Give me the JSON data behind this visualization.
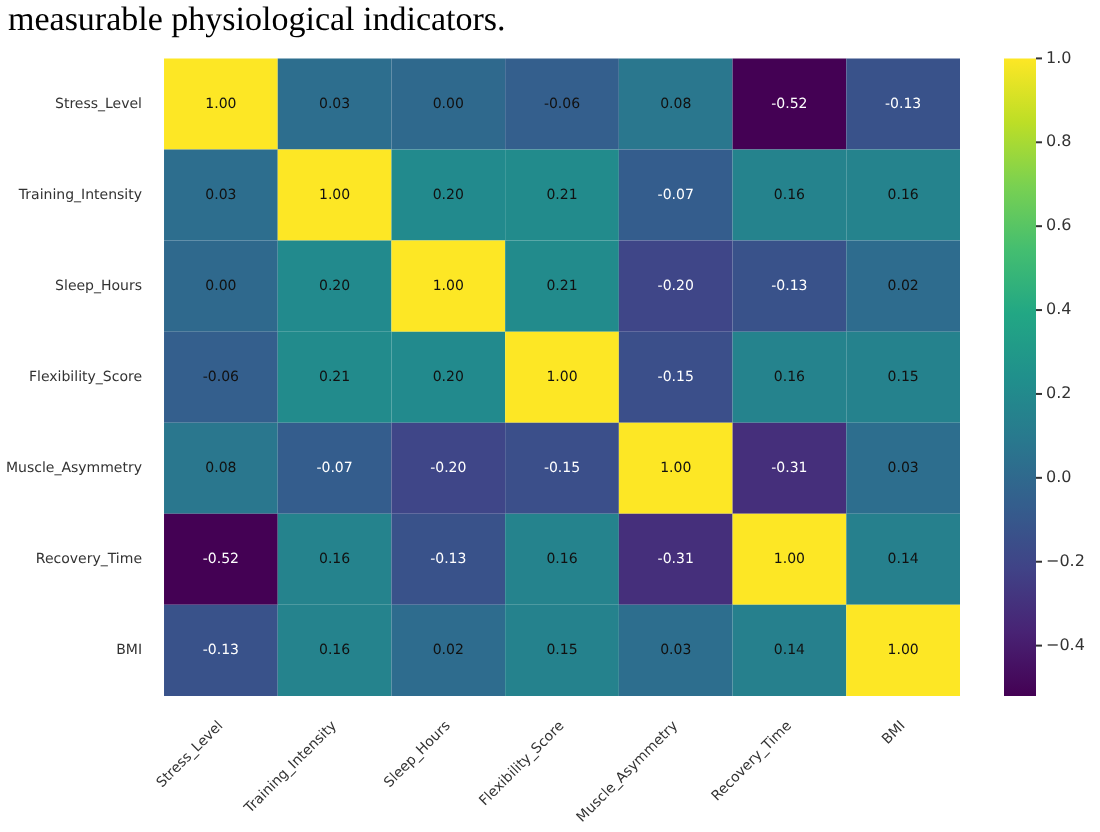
{
  "chart_data": {
    "type": "heatmap",
    "annotations": [
      "measurable physiological indicators."
    ],
    "categories": [
      "Stress_Level",
      "Training_Intensity",
      "Sleep_Hours",
      "Flexibility_Score",
      "Muscle_Asymmetry",
      "Recovery_Time",
      "BMI"
    ],
    "y_categories": [
      "Stress_Level",
      "Training_Intensity",
      "Sleep_Hours",
      "Flexibility_Score",
      "Muscle_Asymmetry",
      "Recovery_Time",
      "BMI"
    ],
    "cells": [
      [
        1.0,
        0.03,
        0.0,
        -0.06,
        0.08,
        -0.52,
        -0.13
      ],
      [
        0.03,
        1.0,
        0.2,
        0.21,
        -0.07,
        0.16,
        0.16
      ],
      [
        0.0,
        0.2,
        1.0,
        0.21,
        -0.2,
        -0.13,
        0.02
      ],
      [
        -0.06,
        0.21,
        0.2,
        1.0,
        -0.15,
        0.16,
        0.15
      ],
      [
        0.08,
        -0.07,
        -0.2,
        -0.15,
        1.0,
        -0.31,
        0.03
      ],
      [
        -0.52,
        0.16,
        -0.13,
        0.16,
        -0.31,
        1.0,
        0.14
      ],
      [
        -0.13,
        0.16,
        0.02,
        0.15,
        0.03,
        0.14,
        1.0
      ]
    ],
    "cell_labels": [
      [
        "1.00",
        "0.03",
        "0.00",
        "-0.06",
        "0.08",
        "-0.52",
        "-0.13"
      ],
      [
        "0.03",
        "1.00",
        "0.20",
        "0.21",
        "-0.07",
        "0.16",
        "0.16"
      ],
      [
        "0.00",
        "0.20",
        "1.00",
        "0.21",
        "-0.20",
        "-0.13",
        "0.02"
      ],
      [
        "-0.06",
        "0.21",
        "0.20",
        "1.00",
        "-0.15",
        "0.16",
        "0.15"
      ],
      [
        "0.08",
        "-0.07",
        "-0.20",
        "-0.15",
        "1.00",
        "-0.31",
        "0.03"
      ],
      [
        "-0.52",
        "0.16",
        "-0.13",
        "0.16",
        "-0.31",
        "1.00",
        "0.14"
      ],
      [
        "-0.13",
        "0.16",
        "0.02",
        "0.15",
        "0.03",
        "0.14",
        "1.00"
      ]
    ],
    "clim": [
      -0.52,
      1.0
    ],
    "cticks": [
      {
        "value": -0.4,
        "label": "−0.4"
      },
      {
        "value": -0.2,
        "label": "−0.2"
      },
      {
        "value": 0,
        "label": "0.0"
      },
      0.2,
      0.4,
      0.6,
      0.8,
      {
        "value": 1,
        "label": "1.0"
      }
    ],
    "grid": false,
    "legend": false
  }
}
